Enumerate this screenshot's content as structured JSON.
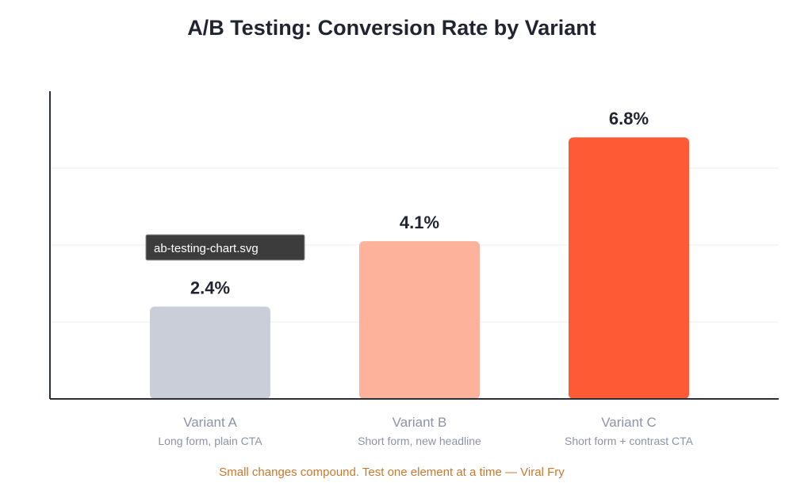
{
  "chart_data": {
    "type": "bar",
    "title": "A/B Testing: Conversion Rate by Variant",
    "categories": [
      "Variant A",
      "Variant B",
      "Variant C"
    ],
    "subcategories": [
      "Long form, plain CTA",
      "Short form, new headline",
      "Short form + contrast CTA"
    ],
    "values": [
      2.4,
      4.1,
      6.8
    ],
    "value_labels": [
      "2.4%",
      "4.1%",
      "6.8%"
    ],
    "colors": [
      "#c9ced8",
      "#fdb39b",
      "#ff5a36"
    ],
    "ylim": [
      0,
      8
    ],
    "grid": true,
    "ylabel": "",
    "xlabel": ""
  },
  "footer": "Small changes compound. Test one element at a time — Viral Fry",
  "tooltip": "ab-testing-chart.svg"
}
